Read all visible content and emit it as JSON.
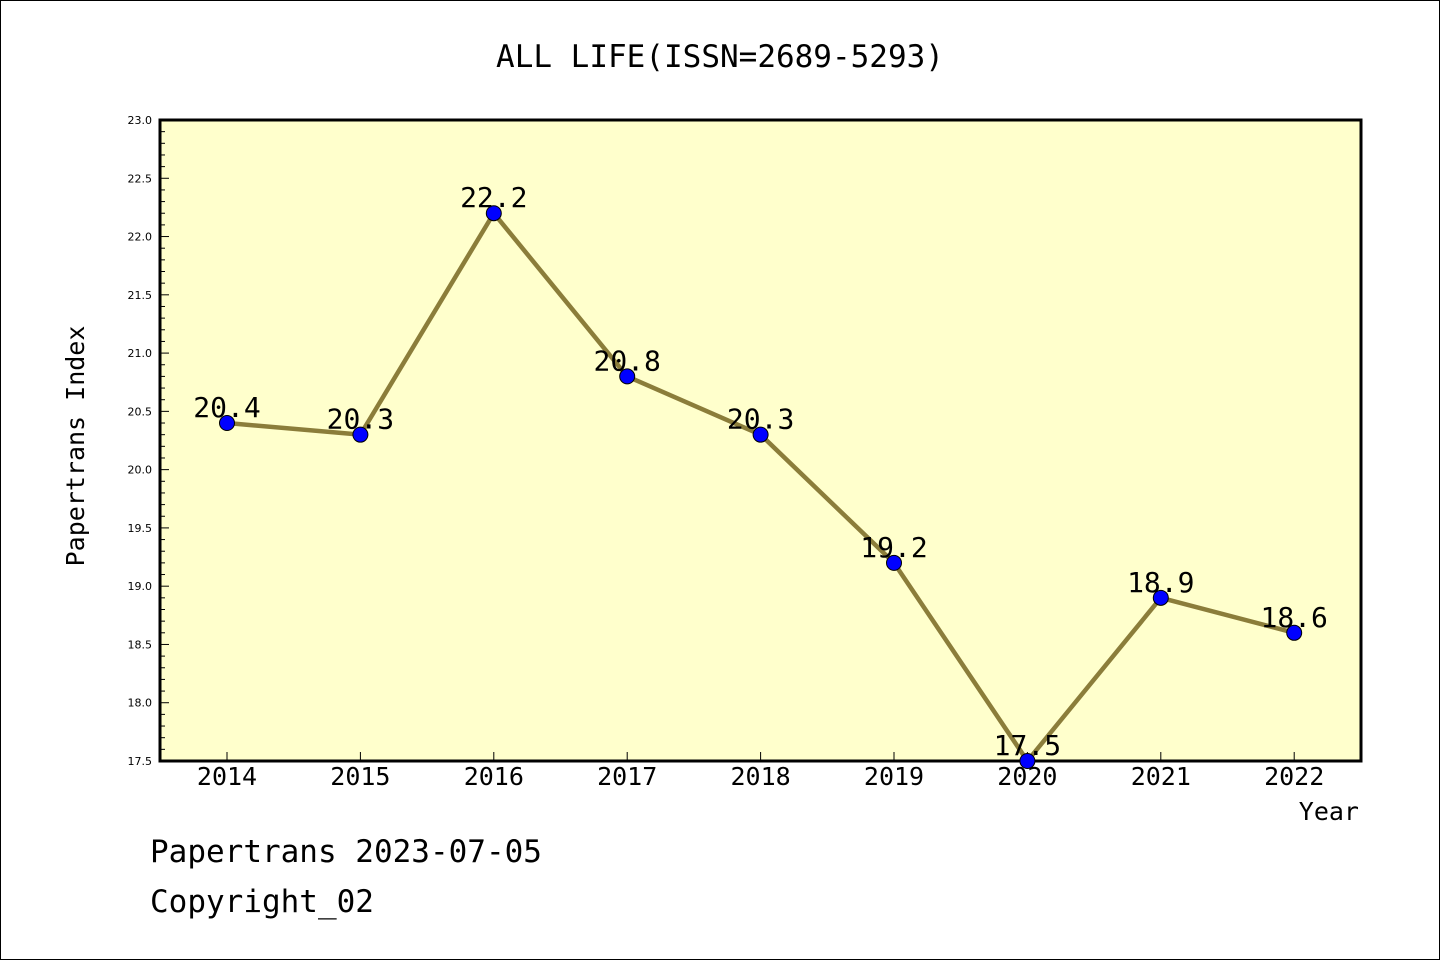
{
  "footer": {
    "line1": "Papertrans 2023-07-05",
    "line2": "Copyright_02"
  },
  "chart_data": {
    "type": "line",
    "title": "ALL LIFE(ISSN=2689-5293)",
    "xlabel": "Year",
    "ylabel": "Papertrans Index",
    "categories": [
      "2014",
      "2015",
      "2016",
      "2017",
      "2018",
      "2019",
      "2020",
      "2021",
      "2022"
    ],
    "series": [
      {
        "values": [
          20.4,
          20.3,
          22.2,
          20.8,
          20.3,
          19.2,
          17.5,
          18.9,
          18.6
        ]
      }
    ],
    "data_labels": [
      "20.4",
      "20.3",
      "22.2",
      "20.8",
      "20.3",
      "19.2",
      "17.5",
      "18.9",
      "18.6"
    ],
    "ylim": [
      17.5,
      23.0
    ],
    "yticks": [
      "17.5",
      "18.0",
      "18.5",
      "19.0",
      "19.5",
      "20.0",
      "20.5",
      "21.0",
      "21.5",
      "22.0",
      "22.5",
      "23.0"
    ],
    "grid": false,
    "legend": "none",
    "colors": {
      "plot_background": "#ffffcc",
      "line": "#8b7d3a",
      "marker": "#0000ff"
    }
  }
}
